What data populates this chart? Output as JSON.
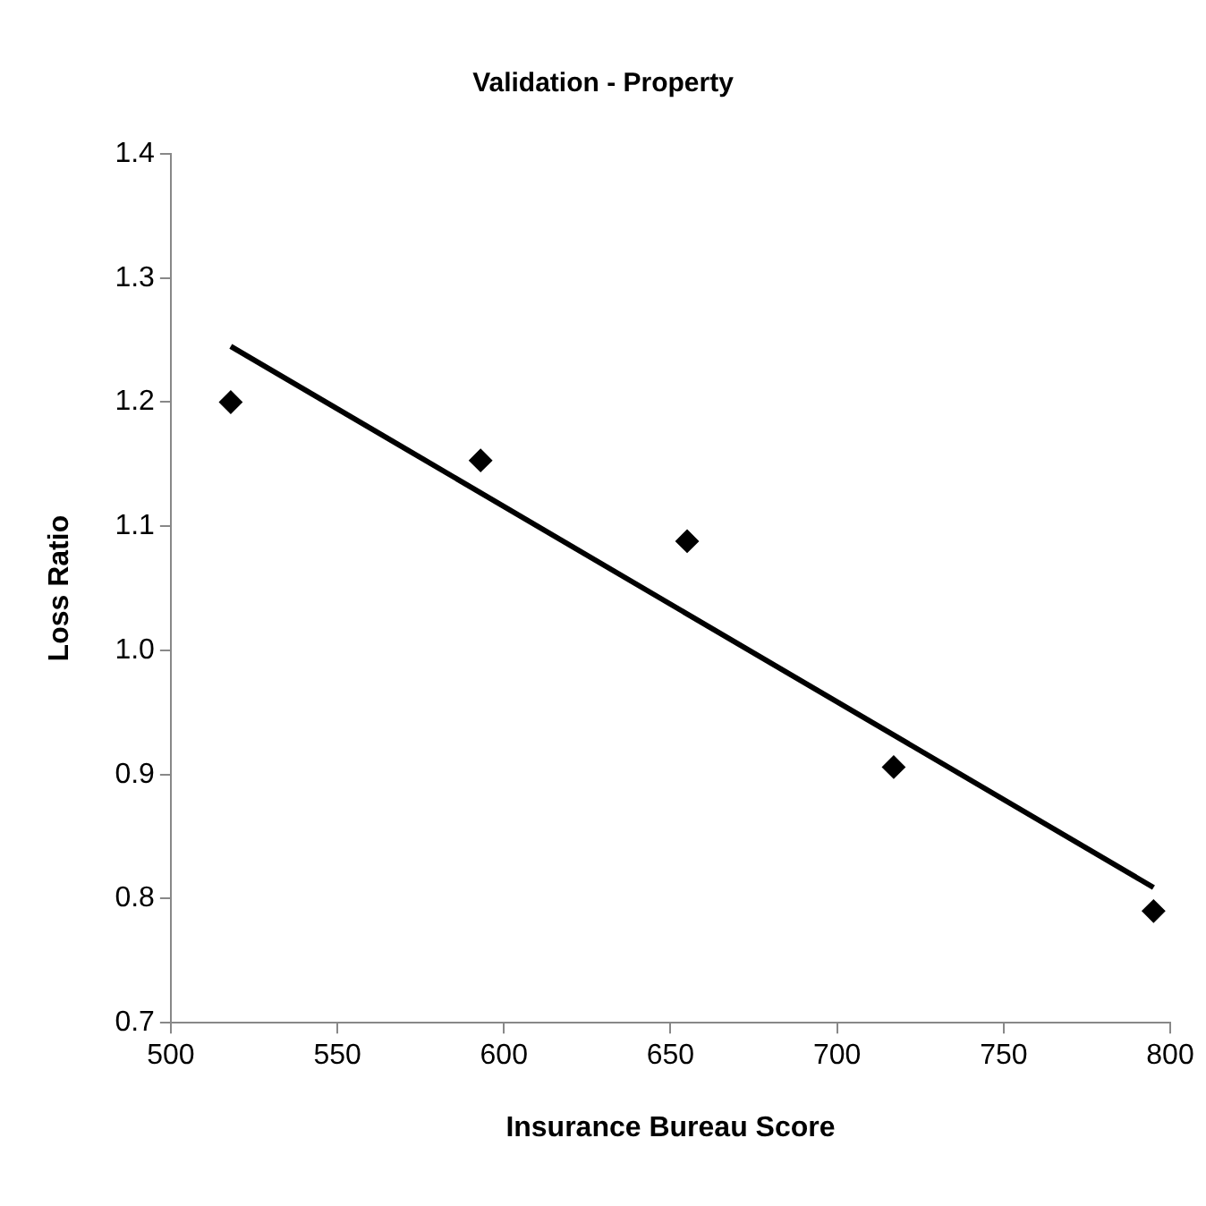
{
  "chart_data": {
    "type": "scatter",
    "title": "Validation - Property",
    "xlabel": "Insurance Bureau Score",
    "ylabel": "Loss Ratio",
    "x": [
      518,
      593,
      655,
      717,
      795
    ],
    "series": [
      {
        "color": "#000000",
        "marker": "diamond",
        "values": [
          1.2,
          1.153,
          1.088,
          0.906,
          0.79
        ]
      },
      {
        "type": "line",
        "color": "#000000",
        "x": [
          518,
          795
        ],
        "values": [
          1.245,
          0.809
        ],
        "marker": "none",
        "line_style": "solid"
      }
    ],
    "xlim": [
      500,
      800
    ],
    "xticks": [
      500,
      550,
      600,
      650,
      700,
      750,
      800
    ],
    "ylim": [
      0.7,
      1.4
    ],
    "yticks": [
      {
        "value": 0.7,
        "label": "0.7"
      },
      {
        "value": 0.8,
        "label": "0.8"
      },
      {
        "value": 0.9,
        "label": "0.9"
      },
      {
        "value": 1.0,
        "label": "1.0"
      },
      {
        "value": 1.1,
        "label": "1.1"
      },
      {
        "value": 1.2,
        "label": "1.2"
      },
      {
        "value": 1.3,
        "label": "1.3"
      },
      {
        "value": 1.4,
        "label": "1.4"
      }
    ],
    "grid": false,
    "legend": false
  }
}
